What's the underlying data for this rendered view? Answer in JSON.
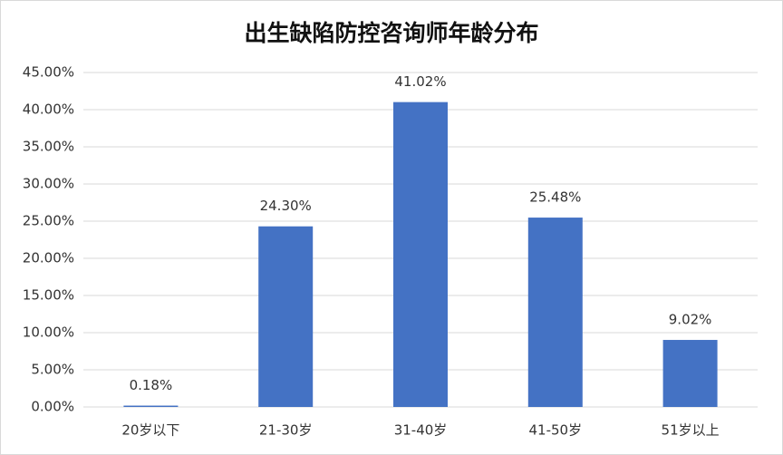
{
  "chart_data": {
    "type": "bar",
    "title": "出生缺陷防控咨询师年龄分布",
    "categories": [
      "20岁以下",
      "21-30岁",
      "31-40岁",
      "41-50岁",
      "51岁以上"
    ],
    "values": [
      0.18,
      24.3,
      41.02,
      25.48,
      9.02
    ],
    "value_labels": [
      "0.18%",
      "24.30%",
      "41.02%",
      "25.48%",
      "9.02%"
    ],
    "color": "#4472c4",
    "ylim": [
      0,
      45
    ],
    "yticks": [
      {
        "value": 0,
        "label": "0.00%"
      },
      {
        "value": 5,
        "label": "5.00%"
      },
      {
        "value": 10,
        "label": "10.00%"
      },
      {
        "value": 15,
        "label": "15.00%"
      },
      {
        "value": 20,
        "label": "20.00%"
      },
      {
        "value": 25,
        "label": "25.00%"
      },
      {
        "value": 30,
        "label": "30.00%"
      },
      {
        "value": 35,
        "label": "35.00%"
      },
      {
        "value": 40,
        "label": "40.00%"
      },
      {
        "value": 45,
        "label": "45.00%"
      }
    ],
    "grid": true
  }
}
